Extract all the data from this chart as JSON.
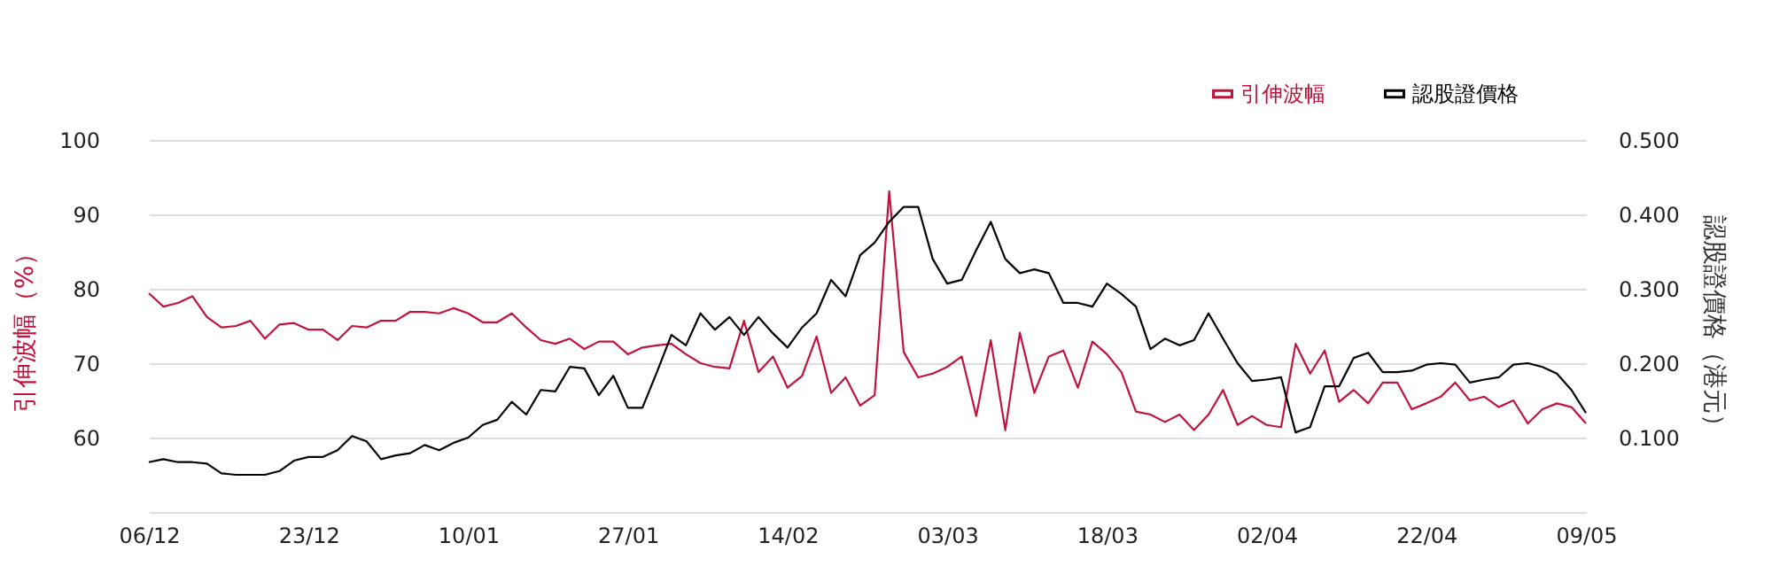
{
  "chart_data": {
    "type": "line",
    "categories": [
      "06/12",
      null,
      null,
      null,
      null,
      null,
      null,
      null,
      null,
      null,
      null,
      "23/12",
      null,
      null,
      null,
      null,
      null,
      null,
      null,
      null,
      null,
      null,
      "10/01",
      null,
      null,
      null,
      null,
      null,
      null,
      null,
      null,
      null,
      null,
      "27/01",
      null,
      null,
      null,
      null,
      null,
      null,
      null,
      null,
      null,
      null,
      "14/02",
      null,
      null,
      null,
      null,
      null,
      null,
      null,
      null,
      null,
      null,
      "03/03",
      null,
      null,
      null,
      null,
      null,
      null,
      null,
      null,
      null,
      null,
      "18/03",
      null,
      null,
      null,
      null,
      null,
      null,
      null,
      null,
      null,
      null,
      "02/04",
      null,
      null,
      null,
      null,
      null,
      null,
      null,
      null,
      null,
      null,
      "22/04",
      null,
      null,
      null,
      null,
      null,
      null,
      null,
      null,
      null,
      null,
      "09/05"
    ],
    "series": [
      {
        "name": "引伸波幅",
        "color": "#c0143c",
        "values": [
          79.4,
          77.6,
          78.1,
          79.0,
          76.2,
          74.8,
          75.0,
          75.7,
          73.3,
          75.2,
          75.4,
          74.5,
          74.5,
          73.1,
          75.0,
          74.8,
          75.7,
          75.7,
          76.9,
          76.9,
          76.7,
          77.4,
          76.7,
          75.5,
          75.5,
          76.7,
          74.8,
          73.1,
          72.6,
          73.3,
          71.9,
          72.9,
          72.9,
          71.2,
          72.1,
          72.4,
          72.6,
          71.2,
          70.0,
          69.5,
          69.3,
          75.7,
          68.8,
          70.9,
          66.7,
          68.3,
          73.6,
          66.0,
          68.1,
          64.3,
          65.7,
          93.1,
          71.5,
          68.1,
          68.6,
          69.5,
          70.9,
          62.9,
          73.1,
          61.0,
          74.1,
          66.0,
          70.9,
          71.7,
          66.7,
          72.9,
          71.2,
          68.8,
          63.5,
          63.1,
          62.1,
          63.1,
          61.0,
          63.1,
          66.4,
          61.7,
          62.9,
          61.7,
          61.4,
          72.6,
          68.6,
          71.7,
          64.8,
          66.4,
          64.6,
          67.4,
          67.4,
          63.8,
          64.6,
          65.5,
          67.4,
          65.0,
          65.5,
          64.1,
          65.0,
          61.9,
          63.8,
          64.6,
          64.1,
          61.9
        ]
      },
      {
        "name": "認股證價格",
        "color": "#000000",
        "axis": "y2",
        "values": [
          0.067,
          0.071,
          0.067,
          0.067,
          0.065,
          0.052,
          0.05,
          0.05,
          0.05,
          0.055,
          0.069,
          0.074,
          0.074,
          0.083,
          0.102,
          0.095,
          0.071,
          0.076,
          0.079,
          0.09,
          0.083,
          0.093,
          0.1,
          0.117,
          0.124,
          0.148,
          0.131,
          0.164,
          0.162,
          0.195,
          0.193,
          0.157,
          0.183,
          0.14,
          0.14,
          0.188,
          0.238,
          0.224,
          0.267,
          0.245,
          0.262,
          0.238,
          0.262,
          0.24,
          0.221,
          0.248,
          0.267,
          0.312,
          0.29,
          0.345,
          0.362,
          0.39,
          0.41,
          0.41,
          0.34,
          0.307,
          0.312,
          0.352,
          0.39,
          0.34,
          0.321,
          0.326,
          0.321,
          0.281,
          0.281,
          0.276,
          0.307,
          0.293,
          0.276,
          0.219,
          0.233,
          0.224,
          0.231,
          0.267,
          0.233,
          0.2,
          0.176,
          0.178,
          0.181,
          0.107,
          0.114,
          0.169,
          0.169,
          0.207,
          0.214,
          0.188,
          0.188,
          0.19,
          0.198,
          0.2,
          0.198,
          0.174,
          0.178,
          0.181,
          0.198,
          0.2,
          0.195,
          0.186,
          0.164,
          0.133
        ]
      }
    ],
    "ylabel": "引伸波幅（%）",
    "y2label": "認股證價格（港元）",
    "ylim": [
      50,
      100
    ],
    "yticks": [
      {
        "value": 50,
        "label": null
      },
      60,
      70,
      80,
      90,
      100
    ],
    "y2lim": [
      0,
      0.5
    ],
    "y2ticks": [
      {
        "value": 0,
        "label": null
      },
      {
        "value": 0.1,
        "label": "0.100"
      },
      {
        "value": 0.2,
        "label": "0.200"
      },
      {
        "value": 0.3,
        "label": "0.300"
      },
      {
        "value": 0.4,
        "label": "0.400"
      },
      {
        "value": 0.5,
        "label": "0.500"
      }
    ],
    "grid": "y",
    "legend": "top right",
    "marker": "none",
    "line_style": "solid"
  }
}
